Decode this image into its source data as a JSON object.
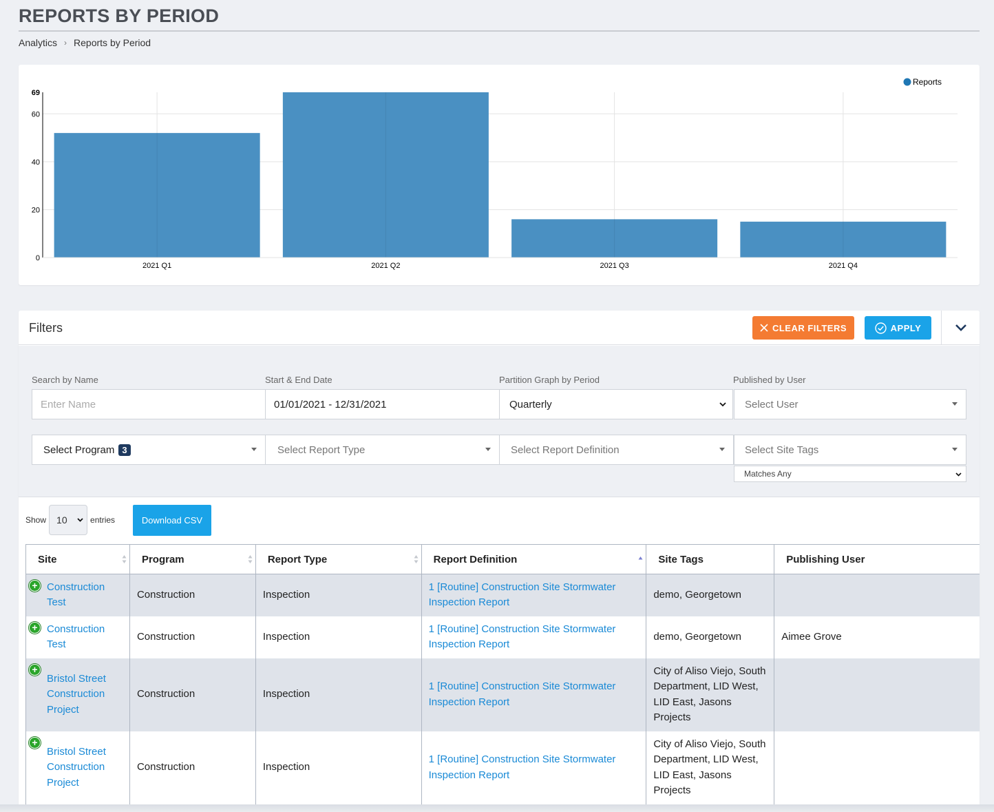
{
  "page": {
    "title": "REPORTS BY PERIOD"
  },
  "breadcrumb": {
    "items": [
      "Analytics",
      "Reports by Period"
    ],
    "separator": "›"
  },
  "chart_data": {
    "type": "bar",
    "categories": [
      "2021 Q1",
      "2021 Q2",
      "2021 Q3",
      "2021 Q4"
    ],
    "series": [
      {
        "name": "Reports",
        "values": [
          52,
          69,
          16,
          15
        ]
      }
    ],
    "yticks": [
      0,
      20,
      40,
      60,
      69
    ],
    "ylim": [
      0,
      69
    ],
    "grid": true,
    "legend": "top-right",
    "color": "#4a90c2",
    "legend_color": "#1f77b4"
  },
  "filters": {
    "title": "Filters",
    "clear_label": "CLEAR FILTERS",
    "apply_label": "APPLY",
    "search_label": "Search by Name",
    "search_placeholder": "Enter Name",
    "date_label": "Start & End Date",
    "date_value": "01/01/2021 - 12/31/2021",
    "period_label": "Partition Graph by Period",
    "period_value": "Quarterly",
    "user_label": "Published by User",
    "user_placeholder": "Select User",
    "program_placeholder": "Select Program",
    "program_count": "3",
    "report_type_placeholder": "Select Report Type",
    "report_def_placeholder": "Select Report Definition",
    "site_tags_placeholder": "Select Site Tags",
    "match_value": "Matches Any"
  },
  "table": {
    "show_label": "Show",
    "entries_value": "10",
    "entries_label": "entries",
    "csv_label": "Download CSV",
    "columns": [
      "Site",
      "Program",
      "Report Type",
      "Report Definition",
      "Site Tags",
      "Publishing User"
    ],
    "rows": [
      {
        "site": "Construction Test",
        "program": "Construction",
        "report_type": "Inspection",
        "definition": "1 [Routine] Construction Site Stormwater Inspection Report",
        "tags": "demo, Georgetown",
        "user": ""
      },
      {
        "site": "Construction Test",
        "program": "Construction",
        "report_type": "Inspection",
        "definition": "1 [Routine] Construction Site Stormwater Inspection Report",
        "tags": "demo, Georgetown",
        "user": "Aimee Grove"
      },
      {
        "site": "Bristol Street Construction Project",
        "program": "Construction",
        "report_type": "Inspection",
        "definition": "1 [Routine] Construction Site Stormwater Inspection Report",
        "tags": "City of Aliso Viejo, South Department, LID West, LID East, Jasons Projects",
        "user": ""
      },
      {
        "site": "Bristol Street Construction Project",
        "program": "Construction",
        "report_type": "Inspection",
        "definition": "1 [Routine] Construction Site Stormwater Inspection Report",
        "tags": "City of Aliso Viejo, South Department, LID West, LID East, Jasons Projects",
        "user": ""
      }
    ]
  }
}
